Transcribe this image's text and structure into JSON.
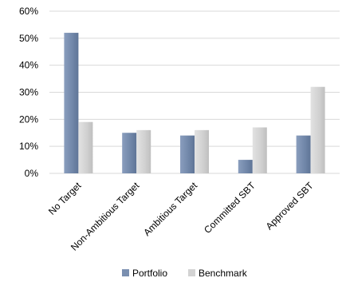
{
  "chart_data": {
    "type": "bar",
    "categories": [
      "No Target",
      "Non-Ambitious Target",
      "Ambitious Target",
      "Committed SBT",
      "Approved SBT"
    ],
    "series": [
      {
        "name": "Portfolio",
        "values": [
          52,
          15,
          14,
          5,
          14
        ],
        "color": "#7a8fb0"
      },
      {
        "name": "Benchmark",
        "values": [
          19,
          16,
          16,
          17,
          32
        ],
        "color": "#d3d3d3"
      }
    ],
    "y_ticks": [
      "0%",
      "10%",
      "20%",
      "30%",
      "40%",
      "50%",
      "60%"
    ],
    "ylim": [
      0,
      60
    ],
    "grid": true,
    "legend": "bottom"
  }
}
